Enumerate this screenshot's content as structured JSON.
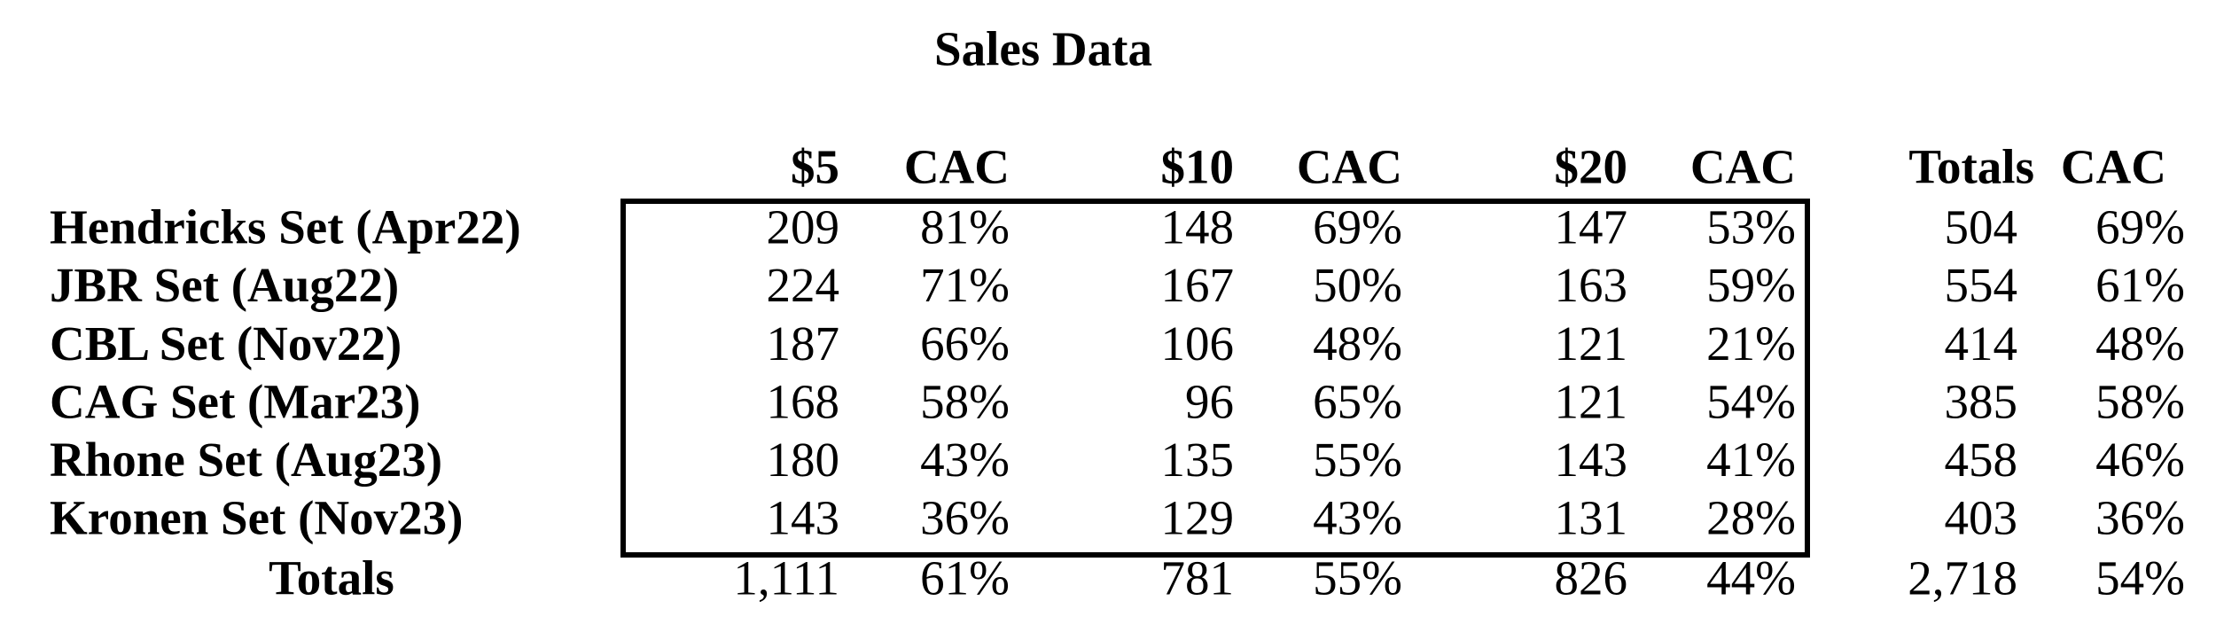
{
  "title": "Sales Data",
  "table": {
    "header": [
      "$5",
      "CAC",
      "$10",
      "CAC",
      "$20",
      "CAC",
      "Totals",
      "CAC"
    ],
    "rows": [
      {
        "label": "Hendricks Set (Apr22)",
        "cells": [
          "209",
          "81%",
          "148",
          "69%",
          "147",
          "53%",
          "504",
          "69%"
        ]
      },
      {
        "label": "JBR Set (Aug22)",
        "cells": [
          "224",
          "71%",
          "167",
          "50%",
          "163",
          "59%",
          "554",
          "61%"
        ]
      },
      {
        "label": "CBL Set (Nov22)",
        "cells": [
          "187",
          "66%",
          "106",
          "48%",
          "121",
          "21%",
          "414",
          "48%"
        ]
      },
      {
        "label": "CAG Set (Mar23)",
        "cells": [
          "168",
          "58%",
          "96",
          "65%",
          "121",
          "54%",
          "385",
          "58%"
        ]
      },
      {
        "label": "Rhone Set (Aug23)",
        "cells": [
          "180",
          "43%",
          "135",
          "55%",
          "143",
          "41%",
          "458",
          "46%"
        ]
      },
      {
        "label": "Kronen Set (Nov23)",
        "cells": [
          "143",
          "36%",
          "129",
          "43%",
          "131",
          "28%",
          "403",
          "36%"
        ]
      }
    ],
    "totals": {
      "label": "Totals",
      "cells": [
        "1,111",
        "61%",
        "781",
        "55%",
        "826",
        "44%",
        "2,718",
        "54%"
      ]
    }
  }
}
